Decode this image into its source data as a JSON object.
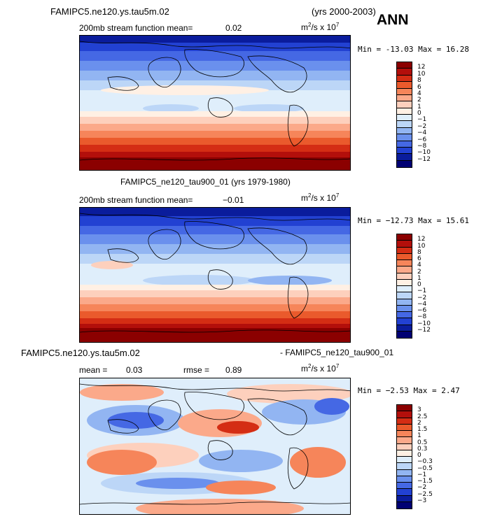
{
  "header": {
    "case_title": "FAMIPC5.ne120.ys.tau5m.02",
    "years": "(yrs 2000-2003)",
    "season": "ANN"
  },
  "panel1": {
    "field_label": "200mb stream function  mean=",
    "mean_value": "0.02",
    "units_base": "m",
    "units_mid": "/s x 10",
    "units_exp_a": "2",
    "units_exp_b": "7",
    "min_label": "Min =",
    "min_value": "-13.03",
    "max_label": "Max =",
    "max_value": "16.28",
    "levels": [
      "12",
      "10",
      "8",
      "6",
      "4",
      "2",
      "1",
      "0",
      "−1",
      "−2",
      "−4",
      "−6",
      "−8",
      "−10",
      "−12"
    ]
  },
  "panel2": {
    "title": "FAMIPC5_ne120_tau900_01 (yrs 1979-1980)",
    "field_label": "200mb stream function  mean=",
    "mean_value": "−0.01",
    "units_base": "m",
    "units_mid": "/s x 10",
    "units_exp_a": "2",
    "units_exp_b": "7",
    "min_label": "Min =",
    "min_value": "−12.73",
    "max_label": "Max =",
    "max_value": "15.61",
    "levels": [
      "12",
      "10",
      "8",
      "6",
      "4",
      "2",
      "1",
      "0",
      "−1",
      "−2",
      "−4",
      "−6",
      "−8",
      "−10",
      "−12"
    ]
  },
  "panel3": {
    "title_left": "FAMIPC5.ne120.ys.tau5m.02",
    "title_right": "- FAMIPC5_ne120_tau900_01",
    "mean_label": "mean =",
    "mean_value": "0.03",
    "rmse_label": "rmse =",
    "rmse_value": "0.89",
    "units_base": "m",
    "units_mid": "/s x 10",
    "units_exp_a": "2",
    "units_exp_b": "7",
    "min_label": "Min =",
    "min_value": "−2.53",
    "max_label": "Max =",
    "max_value": "2.47",
    "levels": [
      "3",
      "2.5",
      "2",
      "1.5",
      "1",
      "0.5",
      "0.3",
      "0",
      "−0.3",
      "−0.5",
      "−1",
      "−1.5",
      "−2",
      "−2.5",
      "−3"
    ]
  },
  "colors": [
    "#8b0000",
    "#b30f0b",
    "#d42d14",
    "#ea5a2c",
    "#f6855a",
    "#fba98a",
    "#fdd0bd",
    "#fff0e4",
    "#dfeefb",
    "#bcd6f7",
    "#92b5f2",
    "#6a90ed",
    "#4568e4",
    "#2241d2",
    "#0a1c9c",
    "#000073"
  ]
}
